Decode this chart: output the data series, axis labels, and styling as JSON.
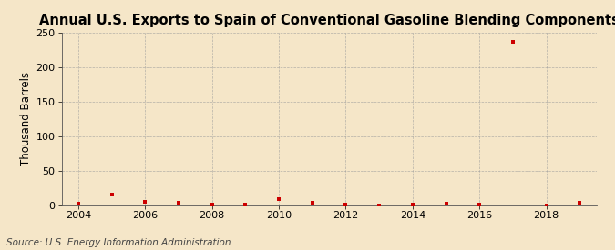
{
  "title": "Annual U.S. Exports to Spain of Conventional Gasoline Blending Components",
  "ylabel": "Thousand Barrels",
  "source": "Source: U.S. Energy Information Administration",
  "bg_color": "#f5e6c8",
  "plot_bg_color": "#f5e6c8",
  "marker_color": "#cc0000",
  "grid_color": "#999999",
  "years": [
    2004,
    2005,
    2006,
    2007,
    2008,
    2009,
    2010,
    2011,
    2012,
    2013,
    2014,
    2015,
    2016,
    2017,
    2018,
    2019
  ],
  "values": [
    2,
    15,
    5,
    3,
    1,
    1,
    9,
    3,
    1,
    0,
    1,
    2,
    1,
    237,
    0,
    3
  ],
  "xlim": [
    2003.5,
    2019.5
  ],
  "ylim": [
    0,
    250
  ],
  "yticks": [
    0,
    50,
    100,
    150,
    200,
    250
  ],
  "xticks": [
    2004,
    2006,
    2008,
    2010,
    2012,
    2014,
    2016,
    2018
  ],
  "title_fontsize": 10.5,
  "label_fontsize": 8.5,
  "tick_fontsize": 8,
  "source_fontsize": 7.5
}
